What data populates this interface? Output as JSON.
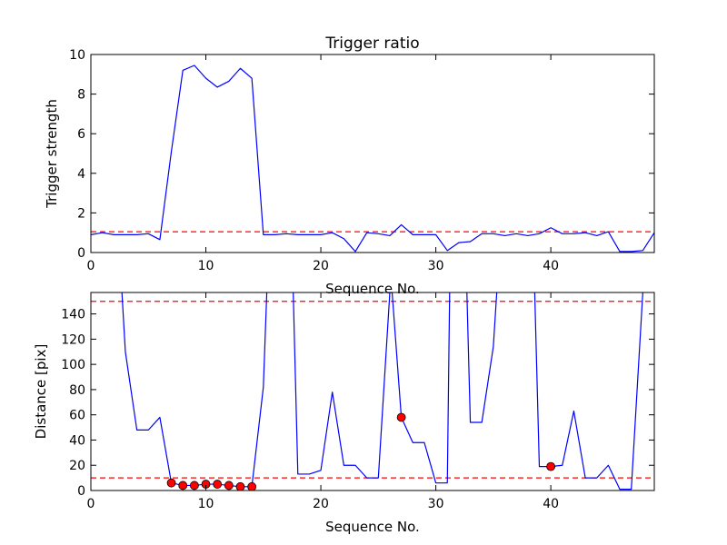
{
  "chart_data": [
    {
      "type": "line",
      "title": "Trigger ratio",
      "xlabel": "Sequence No.",
      "ylabel": "Trigger strength",
      "xlim": [
        0,
        49
      ],
      "ylim": [
        0,
        10
      ],
      "xticks": [
        0,
        10,
        20,
        30,
        40
      ],
      "yticks": [
        0,
        2,
        4,
        6,
        8,
        10
      ],
      "grid": false,
      "series": [
        {
          "color": "#0000ff",
          "style": "solid",
          "x": [
            0,
            1,
            2,
            3,
            4,
            5,
            6,
            7,
            8,
            9,
            10,
            11,
            12,
            13,
            14,
            15,
            16,
            17,
            18,
            19,
            20,
            21,
            22,
            23,
            24,
            25,
            26,
            27,
            28,
            29,
            30,
            31,
            32,
            33,
            34,
            35,
            36,
            37,
            38,
            39,
            40,
            41,
            42,
            43,
            44,
            45,
            46,
            47,
            48,
            49
          ],
          "y": [
            0.9,
            1.0,
            0.9,
            0.9,
            0.9,
            0.95,
            0.65,
            5.1,
            9.2,
            9.45,
            8.8,
            8.35,
            8.65,
            9.3,
            8.8,
            0.9,
            0.9,
            0.95,
            0.9,
            0.9,
            0.9,
            1.0,
            0.7,
            0.05,
            1.0,
            0.95,
            0.85,
            1.4,
            0.9,
            0.9,
            0.9,
            0.1,
            0.5,
            0.55,
            0.95,
            0.95,
            0.85,
            0.95,
            0.85,
            0.95,
            1.25,
            0.95,
            0.95,
            1.0,
            0.85,
            1.05,
            0.05,
            0.05,
            0.1,
            1.0
          ]
        }
      ],
      "reference_lines": [
        {
          "orientation": "horizontal",
          "y": 1.05,
          "color": "#ff0000",
          "style": "dashed"
        }
      ]
    },
    {
      "type": "line",
      "title": "",
      "xlabel": "Sequence No.",
      "ylabel": "Distance [pix]",
      "xlim": [
        0,
        49
      ],
      "ylim": [
        0,
        157
      ],
      "xticks": [
        0,
        10,
        20,
        30,
        40
      ],
      "yticks": [
        0,
        20,
        40,
        60,
        80,
        100,
        120,
        140
      ],
      "grid": false,
      "series": [
        {
          "color": "#0000ff",
          "style": "solid",
          "x": [
            2.7,
            3,
            4,
            5,
            6,
            7,
            8,
            9,
            10,
            11,
            12,
            13,
            14,
            15,
            15.3
          ],
          "y": [
            157,
            110,
            48,
            48,
            58,
            6,
            4,
            4,
            5,
            5,
            4,
            3,
            3,
            82,
            157
          ]
        },
        {
          "color": "#0000ff",
          "style": "solid",
          "x": [
            17.6,
            18,
            19,
            20,
            21,
            22,
            23,
            24,
            25,
            26,
            26.2
          ],
          "y": [
            157,
            13,
            13,
            16,
            78,
            20,
            20,
            10,
            10,
            157,
            157
          ]
        },
        {
          "color": "#0000ff",
          "style": "solid",
          "x": [
            26.2,
            27,
            28,
            29,
            30,
            31,
            31.2
          ],
          "y": [
            157,
            58,
            38,
            38,
            6,
            6,
            157
          ]
        },
        {
          "color": "#0000ff",
          "style": "solid",
          "x": [
            32.7,
            33,
            34,
            35,
            35.3
          ],
          "y": [
            157,
            54,
            54,
            114,
            157
          ]
        },
        {
          "color": "#0000ff",
          "style": "solid",
          "x": [
            38.6,
            39,
            40,
            41,
            42,
            43,
            44,
            45,
            46,
            47,
            48
          ],
          "y": [
            157,
            19,
            19,
            20,
            63,
            10,
            10,
            20,
            1,
            1,
            157
          ]
        },
        {
          "color": "#ff0000",
          "style": "markers",
          "x": [
            7,
            8,
            9,
            10,
            11,
            12,
            13,
            14,
            27,
            40
          ],
          "y": [
            6,
            4,
            4,
            5,
            5,
            4,
            3,
            3,
            58,
            19
          ]
        }
      ],
      "reference_lines": [
        {
          "orientation": "horizontal",
          "y": 150,
          "color": "#ff0000",
          "style": "dashed"
        },
        {
          "orientation": "horizontal",
          "y": 10,
          "color": "#ff0000",
          "style": "dashed"
        }
      ]
    }
  ]
}
